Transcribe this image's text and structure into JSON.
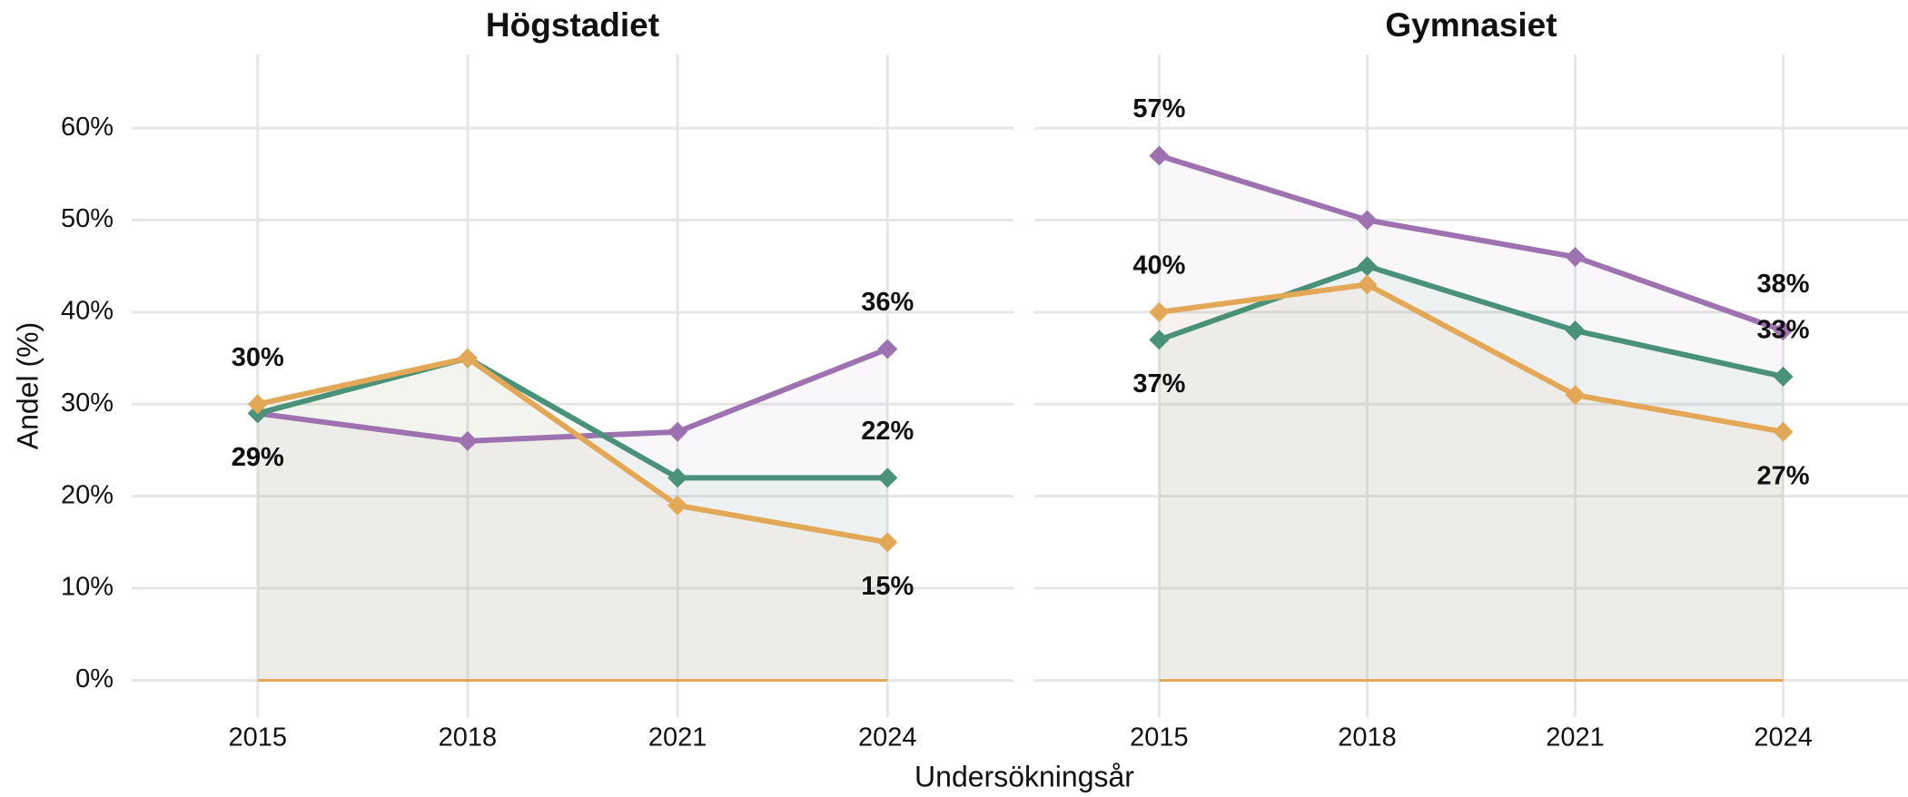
{
  "ylabel": "Andel (%)",
  "xlabel": "Undersökningsår",
  "chart_data": [
    {
      "type": "line",
      "title": "Högstadiet",
      "x": [
        2015,
        2018,
        2021,
        2024
      ],
      "xlim": [
        2013.2,
        2025.8
      ],
      "xticks": [
        2015,
        2018,
        2021,
        2024
      ],
      "ylim": [
        -4,
        68
      ],
      "yticks": [
        {
          "value": 0,
          "label": "0%"
        },
        {
          "value": 10,
          "label": "10%"
        },
        {
          "value": 20,
          "label": "20%"
        },
        {
          "value": 30,
          "label": "30%"
        },
        {
          "value": 40,
          "label": "40%"
        },
        {
          "value": 50,
          "label": "50%"
        },
        {
          "value": 60,
          "label": "60%"
        }
      ],
      "grid": true,
      "series": [
        {
          "color": "#9e72b0",
          "values": [
            29,
            26,
            27,
            36
          ],
          "value_labels": [
            "29%",
            null,
            null,
            "36%"
          ]
        },
        {
          "color": "#4a917a",
          "values": [
            29,
            35,
            22,
            22
          ],
          "value_labels": [
            "29%",
            null,
            null,
            "22%"
          ]
        },
        {
          "color": "#e3a857",
          "values": [
            30,
            35,
            19,
            15
          ],
          "value_labels": [
            "30%",
            null,
            null,
            "15%"
          ]
        }
      ]
    },
    {
      "type": "line",
      "title": "Gymnasiet",
      "x": [
        2015,
        2018,
        2021,
        2024
      ],
      "xlim": [
        2013.2,
        2025.8
      ],
      "xticks": [
        2015,
        2018,
        2021,
        2024
      ],
      "ylim": [
        -4,
        68
      ],
      "yticks": [
        0,
        10,
        20,
        30,
        40,
        50,
        60
      ],
      "grid": true,
      "series": [
        {
          "color": "#9e72b0",
          "values": [
            57,
            50,
            46,
            38
          ],
          "value_labels": [
            "57%",
            null,
            null,
            "38%"
          ]
        },
        {
          "color": "#4a917a",
          "values": [
            37,
            45,
            38,
            33
          ],
          "value_labels": [
            "37%",
            null,
            null,
            "33%"
          ]
        },
        {
          "color": "#e3a857",
          "values": [
            40,
            43,
            31,
            27
          ],
          "value_labels": [
            "40%",
            null,
            null,
            "27%"
          ]
        }
      ]
    }
  ]
}
